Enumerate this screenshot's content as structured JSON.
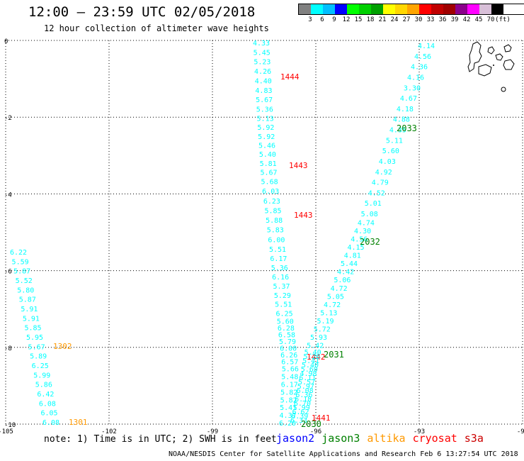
{
  "title": "12:00 – 23:59 UTC 02/05/2018",
  "subtitle": "12 hour collection of altimeter wave heights",
  "legend": {
    "colors": [
      "#808080",
      "#00ffff",
      "#00bfff",
      "#0000ff",
      "#00ff00",
      "#00d000",
      "#00a000",
      "#ffff00",
      "#ffd700",
      "#ffa500",
      "#ff0000",
      "#c00000",
      "#a00000",
      "#8b008b",
      "#ff00ff",
      "#d8bfd8",
      "#000000"
    ],
    "labels": [
      "3",
      "6",
      "9",
      "12",
      "15",
      "18",
      "21",
      "24",
      "27",
      "30",
      "33",
      "36",
      "39",
      "42",
      "45",
      "70",
      "(ft)"
    ]
  },
  "axes": {
    "lon_ticks": [
      "-105",
      "-102",
      "-99",
      "-96",
      "-93",
      "-90"
    ],
    "lat_ticks": [
      "0",
      "-2",
      "-4",
      "-6",
      "-8",
      "-10"
    ]
  },
  "tracks": [
    {
      "id": "track-left",
      "color": "#00ffff",
      "values": [
        "6.22",
        "5.59",
        "5.87",
        "5.52",
        "5.80",
        "5.87",
        "5.91",
        "5.91",
        "5.85",
        "5.95",
        "5.67",
        "5.89",
        "6.25",
        "5.99",
        "5.86",
        "6.42",
        "6.08",
        "6.05",
        "6.08"
      ],
      "time_labels": [
        {
          "text": "1302",
          "color": "#ff9900"
        },
        {
          "text": "1301",
          "color": "#ff9900"
        }
      ]
    },
    {
      "id": "track-middle",
      "color": "#00ffff",
      "values": [
        "4.33",
        "5.45",
        "5.23",
        "4.26",
        "4.40",
        "4.83",
        "5.67",
        "5.36",
        "5.13",
        "5.92",
        "5.92",
        "5.46",
        "5.40",
        "5.81",
        "5.67",
        "5.68",
        "6.03",
        "6.23",
        "5.85",
        "5.88",
        "5.83",
        "6.00",
        "5.51",
        "6.17",
        "5.36",
        "6.16",
        "5.37",
        "5.29",
        "5.51",
        "6.25",
        "5.60",
        "6.28",
        "6.58",
        "5.79",
        "6.00",
        "6.26",
        "6.57",
        "5.66",
        "5.48",
        "6.17",
        "5.82",
        "5.82",
        "5.41",
        "4.37",
        "6.20"
      ],
      "time_labels": [
        {
          "text": "1444",
          "color": "#ff0000"
        },
        {
          "text": "1443",
          "color": "#ff0000"
        },
        {
          "text": "1443",
          "color": "#ff0000"
        },
        {
          "text": "1442",
          "color": "#ff0000"
        },
        {
          "text": "1441",
          "color": "#ff0000"
        }
      ]
    },
    {
      "id": "track-right",
      "color": "#00ffff",
      "values": [
        "4.14",
        "4.56",
        "4.36",
        "4.16",
        "3.30",
        "4.67",
        "4.18",
        "4.88",
        "4.35",
        "5.11",
        "5.60",
        "4.03",
        "4.92",
        "4.79",
        "4.52",
        "5.01",
        "5.08",
        "4.74",
        "4.30",
        "4.56",
        "4.15",
        "4.81",
        "5.44",
        "4.42",
        "5.06",
        "4.72",
        "5.05",
        "4.72",
        "5.13",
        "5.19",
        "5.72",
        "5.93",
        "5.42",
        "5.40",
        "5.26",
        "5.41",
        "5.40",
        "5.60",
        "4.98",
        "6.11",
        "5.57",
        "5.97",
        "6.08",
        "6.36",
        "6.18",
        "6.70",
        "5.99",
        "6.62",
        "6.39",
        "6.33"
      ],
      "time_labels": [
        {
          "text": "2033",
          "color": "#008000"
        },
        {
          "text": "2032",
          "color": "#008000"
        },
        {
          "text": "2031",
          "color": "#008000"
        },
        {
          "text": "2030",
          "color": "#008000"
        }
      ]
    }
  ],
  "note": "note: 1) Time is in UTC; 2) SWH is in feet",
  "satellites": [
    {
      "name": "jason2",
      "color": "#0000ff"
    },
    {
      "name": "jason3",
      "color": "#008000"
    },
    {
      "name": "altika",
      "color": "#ff9900"
    },
    {
      "name": "cryosat",
      "color": "#ff0000"
    },
    {
      "name": "s3a",
      "color": "#cc0000"
    }
  ],
  "footer": "NOAA/NESDIS Center for Satellite Applications and Research   Feb  6 13:27:54 UTC 2018"
}
